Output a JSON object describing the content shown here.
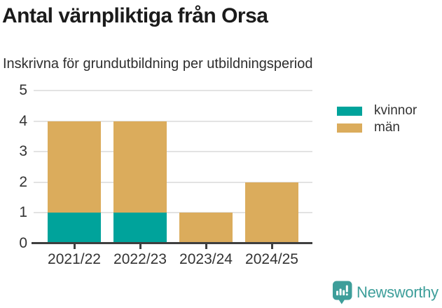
{
  "chart_data": {
    "type": "bar",
    "stacked": true,
    "title": "Antal värnpliktiga från Orsa",
    "subtitle": "Inskrivna för grundutbildning per utbildningsperiod",
    "categories": [
      "2021/22",
      "2022/23",
      "2023/24",
      "2024/25"
    ],
    "series": [
      {
        "name": "kvinnor",
        "color": "#00a39b",
        "values": [
          1,
          1,
          0,
          0
        ]
      },
      {
        "name": "män",
        "color": "#dbac5c",
        "values": [
          3,
          3,
          1,
          2
        ]
      }
    ],
    "totals": [
      4,
      4,
      1,
      2
    ],
    "xlabel": "",
    "ylabel": "",
    "ylim": [
      0,
      5
    ],
    "yticks": [
      0,
      1,
      2,
      3,
      4,
      5
    ],
    "grid": true,
    "legend_position": "right-top"
  },
  "colors": {
    "axis": "#3f3f3f",
    "gridline": "#e3e3e3",
    "tick_text": "#333333",
    "brand_teal": "#3d9e9a"
  },
  "footer": {
    "brand": "Newsworthy"
  }
}
